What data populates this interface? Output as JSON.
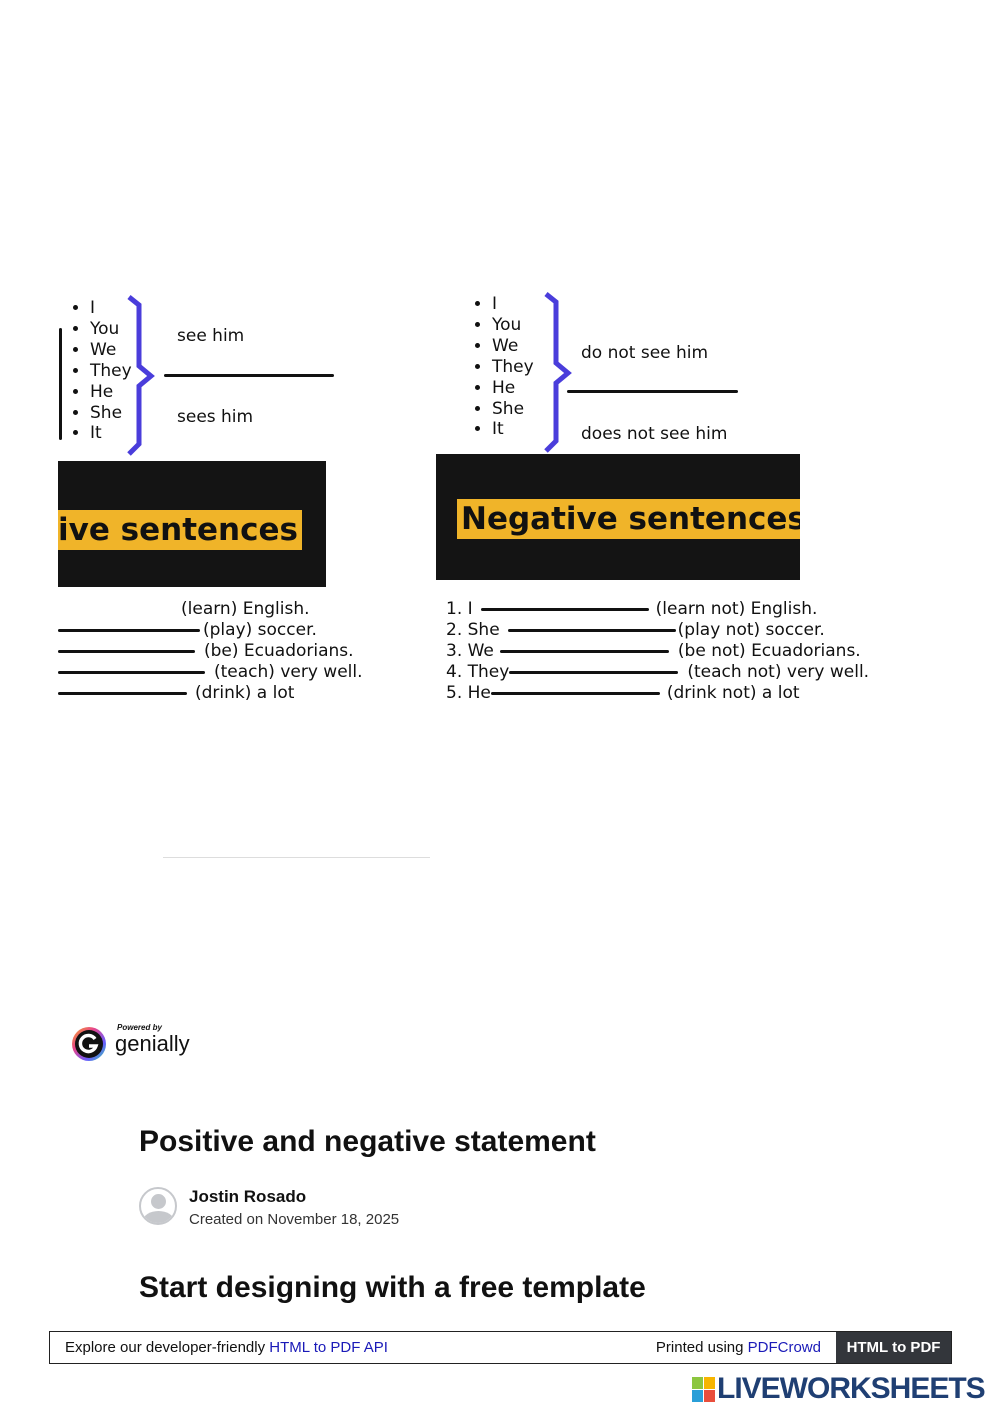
{
  "pronouns": [
    "I",
    "You",
    "We",
    "They",
    "He",
    "She",
    "It"
  ],
  "positive": {
    "top_phrase": "see him",
    "bottom_phrase": "sees him",
    "banner": "ive sentences",
    "sentences": [
      {
        "prefix": "",
        "suffix": "(learn) English."
      },
      {
        "prefix": "",
        "suffix": "(play) soccer."
      },
      {
        "prefix": "",
        "suffix": "(be) Ecuadorians."
      },
      {
        "prefix": "",
        "suffix": "(teach) very well."
      },
      {
        "prefix": "",
        "suffix": "(drink) a lot"
      }
    ]
  },
  "negative": {
    "top_phrase": "do not see him",
    "bottom_phrase": "does not see him",
    "banner": "Negative sentences",
    "sentences": [
      {
        "prefix": "1. I",
        "suffix": "(learn not) English."
      },
      {
        "prefix": "2. She",
        "suffix": "(play not) soccer."
      },
      {
        "prefix": "3. We",
        "suffix": "(be not) Ecuadorians."
      },
      {
        "prefix": "4. They",
        "suffix": "(teach not) very well."
      },
      {
        "prefix": "5. He",
        "suffix": "(drink not) a lot"
      }
    ]
  },
  "colors": {
    "brace": "#4a3ddb",
    "banner_bg": "#141414",
    "highlight": "#f0b429",
    "link": "#1a1ab8"
  },
  "genially": {
    "powered_by": "Powered by",
    "brand": "genially"
  },
  "title": "Positive and negative statement",
  "author": {
    "name": "Jostin Rosado",
    "created": "Created on November 18, 2025"
  },
  "cta": "Start designing with a free template",
  "footer": {
    "explore": "Explore our developer-friendly",
    "api_link": "HTML to PDF API",
    "printed": "Printed using",
    "pdfcrowd_link": "PDFCrowd",
    "button": "HTML to PDF"
  },
  "liveworksheets": "LIVEWORKSHEETS"
}
